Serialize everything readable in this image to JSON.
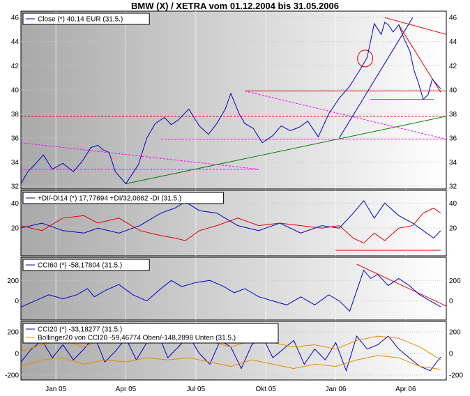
{
  "page": {
    "title": "BMW (X) / XETRA vom 01.12.2004 bis 31.05.2006"
  },
  "chart_data": [
    {
      "type": "line",
      "panel": "price",
      "legend": [
        "Close (*) 40,14 EUR (31.5.)"
      ],
      "y_ticks_left": [
        "46",
        "44",
        "42",
        "40",
        "38",
        "36",
        "34",
        "32"
      ],
      "y_ticks_right": [
        "46",
        "44",
        "42",
        "40",
        "38",
        "36",
        "34",
        "32"
      ],
      "ylim": [
        32,
        46.3
      ],
      "grid": true,
      "series": [
        {
          "color": "#0000c0",
          "x": [
            0,
            10,
            20,
            32,
            45,
            60,
            75,
            88,
            100,
            110,
            118,
            126,
            135,
            150,
            168,
            180,
            192,
            205,
            215,
            225,
            240,
            255,
            268,
            280,
            292,
            300,
            312,
            320,
            332,
            345,
            360,
            372,
            385,
            398,
            410,
            425,
            440,
            455,
            470,
            485,
            495,
            505,
            515,
            520,
            525,
            532,
            540,
            548,
            556,
            562,
            568,
            575,
            582,
            588,
            595,
            600
          ],
          "y": [
            32.2,
            33.2,
            33.8,
            34.6,
            33.4,
            33.9,
            33.2,
            34.1,
            35.2,
            35.4,
            35.0,
            34.8,
            33.2,
            32.2,
            33.8,
            36.0,
            37.2,
            37.7,
            37.1,
            37.5,
            38.4,
            37.0,
            36.3,
            37.2,
            38.4,
            39.7,
            38.0,
            37.2,
            36.8,
            35.6,
            36.2,
            37.0,
            36.6,
            36.9,
            37.4,
            36.1,
            38.0,
            39.3,
            40.3,
            41.7,
            42.7,
            45.5,
            44.6,
            45.6,
            45.4,
            44.8,
            45.4,
            44.2,
            43.2,
            41.6,
            40.6,
            39.2,
            39.6,
            40.9,
            40.4,
            40.1
          ]
        }
      ]
    },
    {
      "type": "line",
      "panel": "dmi",
      "legend": [
        "+DI/-DI14 (*) 17,77694 +DI/32,0862 -DI (31.5.)"
      ],
      "y_ticks_left": [
        "40",
        "20"
      ],
      "y_ticks_right": [
        "40",
        "20"
      ],
      "ylim": [
        0,
        48
      ],
      "series": [
        {
          "color": "#0000c0",
          "x": [
            0,
            30,
            60,
            90,
            110,
            140,
            170,
            200,
            220,
            235,
            255,
            280,
            310,
            340,
            370,
            400,
            430,
            455,
            475,
            490,
            505,
            520,
            540,
            560,
            575,
            590,
            600
          ],
          "y": [
            20,
            24,
            18,
            16,
            20,
            16,
            22,
            32,
            36,
            41,
            34,
            32,
            22,
            18,
            24,
            16,
            22,
            20,
            32,
            42,
            28,
            40,
            30,
            24,
            18,
            12,
            18
          ]
        },
        {
          "color": "#e00000",
          "x": [
            0,
            30,
            60,
            90,
            110,
            140,
            170,
            200,
            220,
            235,
            255,
            280,
            310,
            340,
            370,
            400,
            430,
            455,
            475,
            490,
            505,
            520,
            540,
            560,
            575,
            590,
            600
          ],
          "y": [
            22,
            18,
            28,
            30,
            24,
            28,
            18,
            14,
            12,
            10,
            18,
            22,
            28,
            22,
            24,
            22,
            20,
            22,
            12,
            8,
            16,
            10,
            20,
            22,
            32,
            36,
            32
          ]
        }
      ]
    },
    {
      "type": "line",
      "panel": "cci60",
      "legend": [
        "CCI60 (*) -58,17804 (31.5.)"
      ],
      "y_ticks_left": [
        "200",
        "0"
      ],
      "y_ticks_right": [
        "200",
        "0"
      ],
      "ylim": [
        -160,
        400
      ],
      "series": [
        {
          "color": "#0000c0",
          "x": [
            0,
            20,
            40,
            60,
            80,
            95,
            105,
            120,
            140,
            160,
            180,
            200,
            215,
            230,
            250,
            270,
            290,
            305,
            320,
            340,
            360,
            380,
            400,
            420,
            440,
            455,
            470,
            480,
            490,
            500,
            510,
            525,
            540,
            555,
            570,
            585,
            600
          ],
          "y": [
            -60,
            0,
            60,
            20,
            60,
            120,
            40,
            100,
            160,
            60,
            0,
            120,
            200,
            140,
            180,
            200,
            140,
            80,
            120,
            40,
            0,
            -40,
            40,
            -40,
            60,
            0,
            -100,
            100,
            300,
            220,
            260,
            150,
            220,
            150,
            60,
            0,
            -58
          ]
        }
      ]
    },
    {
      "type": "line",
      "panel": "cci20",
      "legend": [
        "CCI20 (*) -33,18277 (31.5.)",
        "Bollinger20 von CCI20 -59,46774 Oben/-148,2898 Unten (31.5.)"
      ],
      "y_ticks_left": [
        "200",
        "0",
        "-200"
      ],
      "y_ticks_right": [
        "200",
        "0",
        "-200"
      ],
      "ylim": [
        -220,
        270
      ],
      "series": [
        {
          "color": "#0000c0",
          "x": [
            0,
            15,
            30,
            45,
            60,
            75,
            90,
            105,
            120,
            135,
            150,
            165,
            180,
            195,
            210,
            225,
            240,
            255,
            270,
            285,
            300,
            315,
            330,
            345,
            360,
            375,
            390,
            405,
            420,
            435,
            450,
            465,
            480,
            495,
            510,
            525,
            540,
            555,
            570,
            585,
            600
          ],
          "y": [
            -80,
            40,
            120,
            -40,
            80,
            -60,
            40,
            160,
            -80,
            20,
            140,
            -60,
            100,
            200,
            -40,
            60,
            160,
            0,
            -100,
            120,
            60,
            -140,
            80,
            160,
            -40,
            40,
            120,
            -100,
            40,
            -60,
            100,
            -160,
            160,
            40,
            80,
            160,
            40,
            -40,
            -120,
            -160,
            -33
          ]
        },
        {
          "color": "#e88a00",
          "x": [
            0,
            30,
            60,
            90,
            120,
            150,
            180,
            210,
            240,
            270,
            300,
            330,
            360,
            390,
            420,
            450,
            480,
            510,
            540,
            570,
            600
          ],
          "y": [
            20,
            80,
            120,
            60,
            140,
            100,
            160,
            120,
            150,
            110,
            60,
            120,
            100,
            60,
            80,
            40,
            120,
            160,
            140,
            60,
            -59
          ]
        },
        {
          "color": "#e88a00",
          "x": [
            0,
            30,
            60,
            90,
            120,
            150,
            180,
            210,
            240,
            270,
            300,
            330,
            360,
            390,
            420,
            450,
            480,
            510,
            540,
            570,
            600
          ],
          "y": [
            -120,
            -60,
            -40,
            -100,
            -60,
            -80,
            -40,
            -60,
            -40,
            -80,
            -120,
            -60,
            -100,
            -140,
            -100,
            -120,
            -60,
            -20,
            -40,
            -120,
            -148
          ]
        }
      ]
    }
  ],
  "x_axis": {
    "labels": [
      "Jan 05",
      "Apr 05",
      "Jul 05",
      "Okt 05",
      "Jan 06",
      "Apr 06"
    ],
    "positions": [
      50,
      150,
      250,
      350,
      450,
      550
    ],
    "xlim": [
      0,
      608
    ]
  }
}
